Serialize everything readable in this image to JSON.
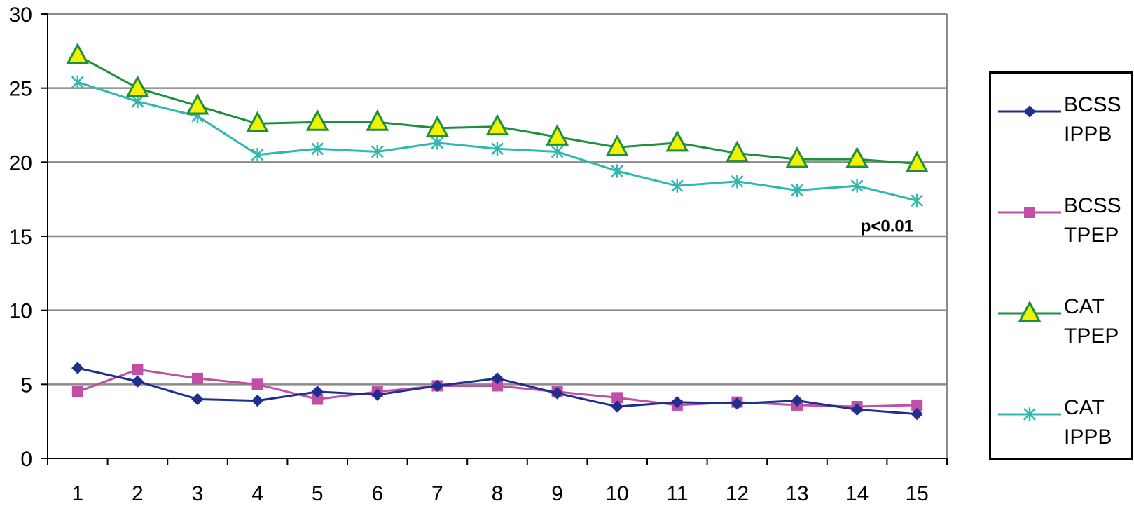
{
  "chart_data": {
    "type": "line",
    "title": "",
    "xlabel": "",
    "ylabel": "",
    "x": [
      1,
      2,
      3,
      4,
      5,
      6,
      7,
      8,
      9,
      10,
      11,
      12,
      13,
      14,
      15
    ],
    "ylim": [
      0,
      30
    ],
    "yticks": [
      0,
      5,
      10,
      15,
      20,
      25,
      30
    ],
    "grid": "horizontal",
    "legend_position": "right",
    "series": [
      {
        "name": "BCSS IPPB",
        "color": "#1f2f8f",
        "marker": "diamond",
        "values": [
          6.1,
          5.2,
          4.0,
          3.9,
          4.5,
          4.3,
          4.9,
          5.4,
          4.4,
          3.5,
          3.8,
          3.7,
          3.9,
          3.3,
          3.0
        ]
      },
      {
        "name": "BCSS TPEP",
        "color": "#c24fa6",
        "marker": "square",
        "values": [
          4.5,
          6.0,
          5.4,
          5.0,
          4.0,
          4.5,
          4.9,
          4.9,
          4.5,
          4.1,
          3.6,
          3.8,
          3.6,
          3.5,
          3.6
        ]
      },
      {
        "name": "CAT TPEP",
        "color": "#1e8f3c",
        "marker": "triangle",
        "values": [
          27.2,
          25.0,
          23.8,
          22.6,
          22.7,
          22.7,
          22.3,
          22.4,
          21.7,
          21.0,
          21.3,
          20.6,
          20.2,
          20.2,
          19.9
        ]
      },
      {
        "name": "CAT IPPB",
        "color": "#2fb8b0",
        "marker": "x",
        "values": [
          25.4,
          24.1,
          23.1,
          20.5,
          20.9,
          20.7,
          21.3,
          20.9,
          20.7,
          19.4,
          18.4,
          18.7,
          18.1,
          18.4,
          17.4
        ]
      }
    ],
    "annotations": [
      {
        "text": "p<0.01",
        "x": 14.5,
        "y": 15.3
      }
    ]
  },
  "legend": [
    {
      "line1": "BCSS",
      "line2": "IPPB"
    },
    {
      "line1": "BCSS",
      "line2": "TPEP"
    },
    {
      "line1": "CAT",
      "line2": "TPEP"
    },
    {
      "line1": "CAT",
      "line2": "IPPB"
    }
  ]
}
